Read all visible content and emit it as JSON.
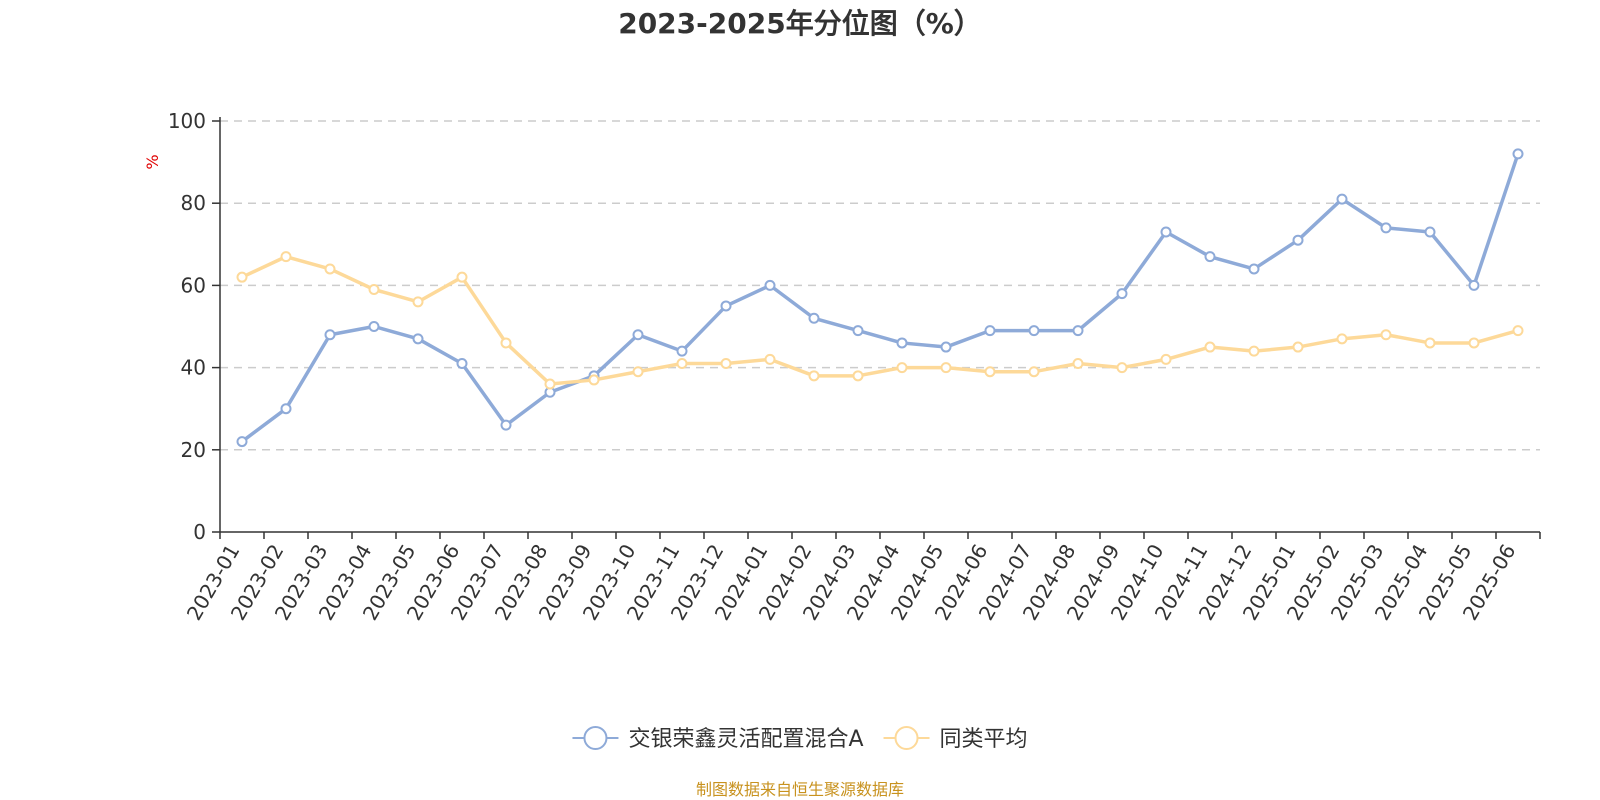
{
  "chart_data": {
    "type": "line",
    "title": "2023-2025年分位图（%）",
    "ylabel": "%",
    "ylim": [
      0,
      100
    ],
    "yticks": [
      0,
      20,
      40,
      60,
      80,
      100
    ],
    "grid": true,
    "legend_position": "bottom-center",
    "categories": [
      "2023-01",
      "2023-02",
      "2023-03",
      "2023-04",
      "2023-05",
      "2023-06",
      "2023-07",
      "2023-08",
      "2023-09",
      "2023-10",
      "2023-11",
      "2023-12",
      "2024-01",
      "2024-02",
      "2024-03",
      "2024-04",
      "2024-05",
      "2024-06",
      "2024-07",
      "2024-08",
      "2024-09",
      "2024-10",
      "2024-11",
      "2024-12",
      "2025-01",
      "2025-02",
      "2025-03",
      "2025-04",
      "2025-05",
      "2025-06"
    ],
    "series": [
      {
        "name": "交银荣鑫灵活配置混合A",
        "color": "#8eaad8",
        "values": [
          22,
          30,
          48,
          50,
          47,
          41,
          26,
          34,
          38,
          48,
          44,
          55,
          60,
          52,
          49,
          46,
          45,
          49,
          49,
          49,
          58,
          73,
          67,
          64,
          71,
          81,
          74,
          73,
          60,
          92
        ]
      },
      {
        "name": "同类平均",
        "color": "#fdd999",
        "values": [
          62,
          67,
          64,
          59,
          56,
          62,
          46,
          36,
          37,
          39,
          41,
          41,
          42,
          38,
          38,
          40,
          40,
          39,
          39,
          41,
          40,
          42,
          45,
          44,
          45,
          47,
          48,
          46,
          46,
          49
        ]
      }
    ]
  },
  "colors": {
    "axis": "#333333",
    "grid": "#cccccc",
    "unit": "#e00000",
    "source": "#c8921e"
  },
  "source_note": "制图数据来自恒生聚源数据库"
}
